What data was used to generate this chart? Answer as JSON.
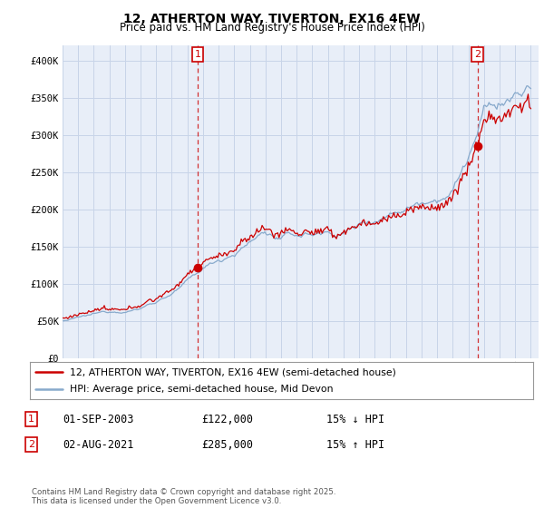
{
  "title": "12, ATHERTON WAY, TIVERTON, EX16 4EW",
  "subtitle": "Price paid vs. HM Land Registry's House Price Index (HPI)",
  "ylabel_ticks": [
    "£0",
    "£50K",
    "£100K",
    "£150K",
    "£200K",
    "£250K",
    "£300K",
    "£350K",
    "£400K"
  ],
  "ytick_values": [
    0,
    50000,
    100000,
    150000,
    200000,
    250000,
    300000,
    350000,
    400000
  ],
  "ylim": [
    0,
    420000
  ],
  "sale1_x": 2003.667,
  "sale1_price": 122000,
  "sale2_x": 2021.583,
  "sale2_price": 285000,
  "line_color_red": "#cc0000",
  "line_color_blue": "#88aacc",
  "vline_color": "#cc0000",
  "grid_color": "#c8d4e8",
  "bg_color": "#e8eef8",
  "legend_label_red": "12, ATHERTON WAY, TIVERTON, EX16 4EW (semi-detached house)",
  "legend_label_blue": "HPI: Average price, semi-detached house, Mid Devon",
  "footer": "Contains HM Land Registry data © Crown copyright and database right 2025.\nThis data is licensed under the Open Government Licence v3.0.",
  "start_year": 1995,
  "end_year": 2025
}
